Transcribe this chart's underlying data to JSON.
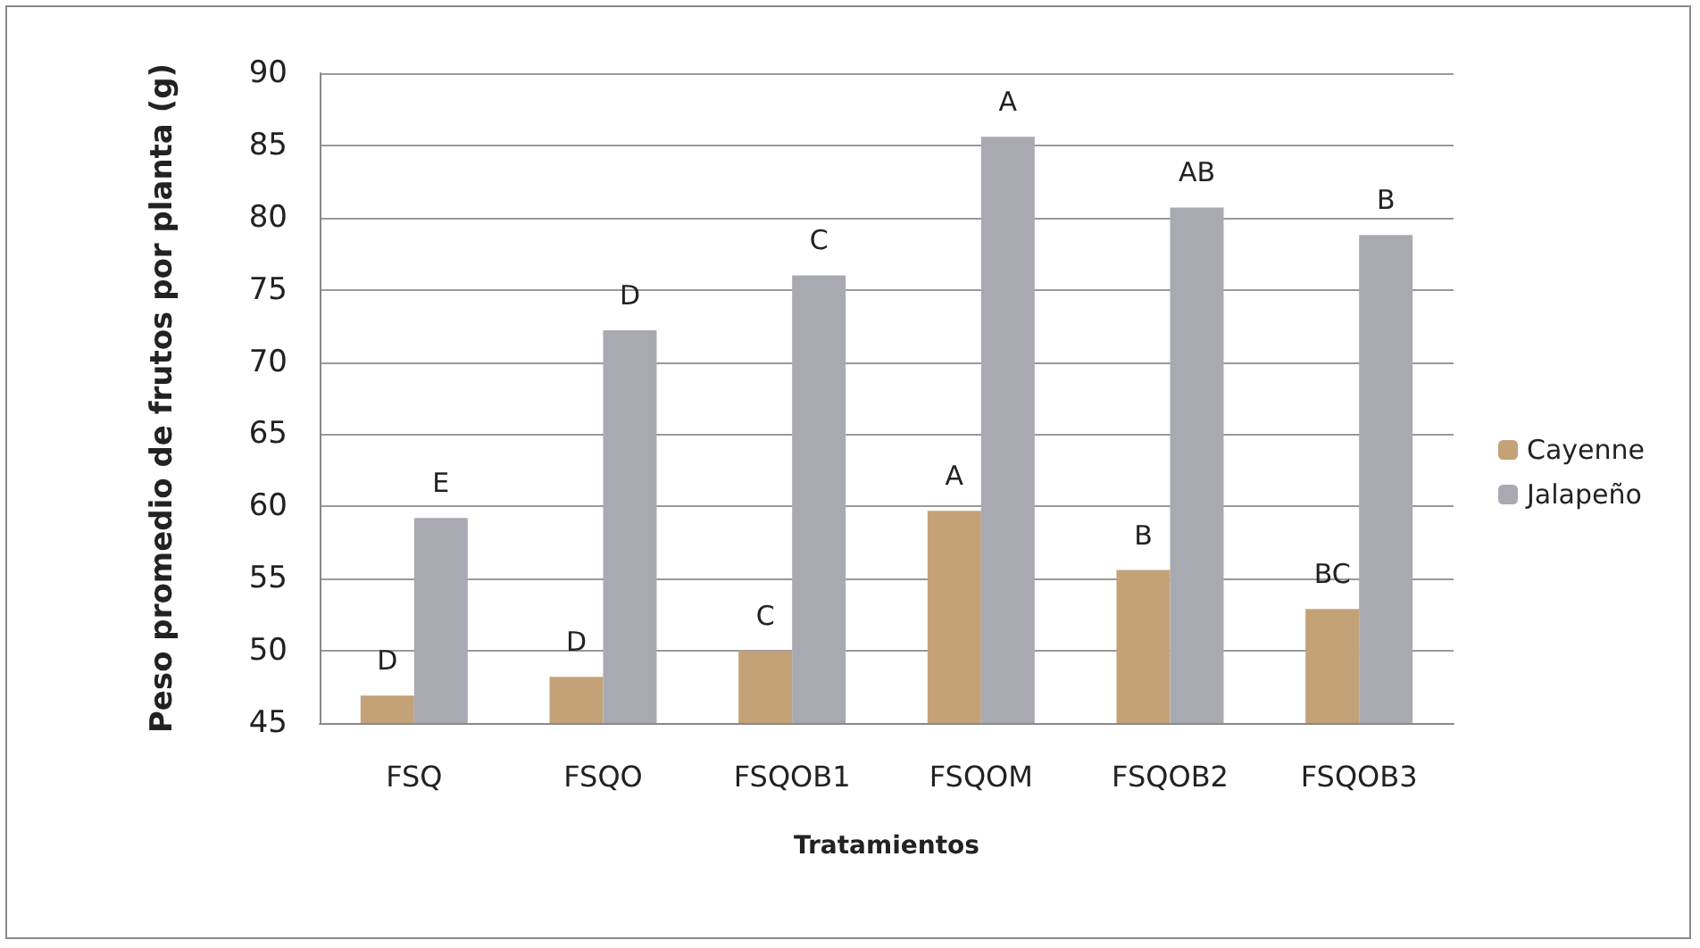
{
  "chart_data": {
    "type": "bar",
    "xlabel": "Tratamientos",
    "ylabel": "Peso promedio de frutos por planta (g)",
    "categories": [
      "FSQ",
      "FSQO",
      "FSQOB1",
      "FSQOM",
      "FSQOB2",
      "FSQOB3"
    ],
    "series": [
      {
        "name": "Cayenne",
        "color": "#c4a277",
        "values": [
          46.9,
          48.2,
          50.0,
          59.7,
          55.6,
          52.9
        ],
        "value_labels": [
          "D",
          "D",
          "C",
          "A",
          "B",
          "BC"
        ]
      },
      {
        "name": "Jalapeño",
        "color": "#a9a9b1",
        "values": [
          59.2,
          72.2,
          76.0,
          85.6,
          80.7,
          78.8
        ],
        "value_labels": [
          "E",
          "D",
          "C",
          "A",
          "AB",
          "B"
        ]
      }
    ],
    "ylim": [
      45,
      90
    ],
    "yticks": [
      45,
      50,
      55,
      60,
      65,
      70,
      75,
      80,
      85,
      90
    ],
    "grid": "y",
    "legend": "right"
  }
}
